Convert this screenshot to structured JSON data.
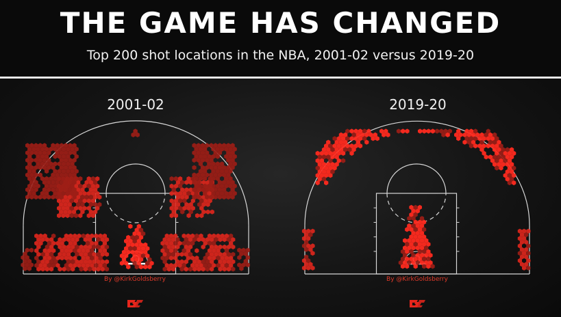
{
  "header": {
    "title": "THE GAME HAS CHANGED",
    "subtitle": "Top 200 shot locations in the NBA, 2001-02 versus 2019-20"
  },
  "colors": {
    "background": "#0c0c0c",
    "court_lines": "#d8d8d8",
    "hex_bright": "#ff2a1f",
    "hex_mid": "#d8261c",
    "hex_dim": "#9a1d16",
    "credit": "#e23a2a"
  },
  "icons": [
    "court-diagram",
    "hexbin-shot-marker",
    "logo-icon"
  ],
  "chart_data": [
    {
      "type": "heatmap",
      "title": "2001-02",
      "credit": "By @KirkGoldsberry",
      "description_units": "court feet; x = lateral offset from basket (-25..25), y = distance from baseline (0..47)",
      "xlim": [
        -25,
        25
      ],
      "ylim": [
        0,
        47
      ],
      "clusters": [
        {
          "zone": "restricted-area",
          "x": [
            -4,
            4
          ],
          "y": [
            1,
            10
          ],
          "intensity": "high"
        },
        {
          "zone": "left-baseline-midrange",
          "x": [
            -22,
            -6
          ],
          "y": [
            1,
            8
          ],
          "intensity": "medium"
        },
        {
          "zone": "right-baseline-midrange",
          "x": [
            6,
            22
          ],
          "y": [
            1,
            8
          ],
          "intensity": "medium"
        },
        {
          "zone": "left-elbow-midrange",
          "x": [
            -17,
            -8
          ],
          "y": [
            12,
            20
          ],
          "intensity": "medium"
        },
        {
          "zone": "right-elbow-midrange",
          "x": [
            8,
            17
          ],
          "y": [
            12,
            20
          ],
          "intensity": "medium"
        },
        {
          "zone": "left-wing-three",
          "x": [
            -24,
            -13
          ],
          "y": [
            16,
            27
          ],
          "intensity": "low"
        },
        {
          "zone": "right-wing-three",
          "x": [
            13,
            22
          ],
          "y": [
            16,
            27
          ],
          "intensity": "low"
        },
        {
          "zone": "top-of-key-three",
          "x": [
            -1,
            1
          ],
          "y": [
            29,
            30
          ],
          "intensity": "low"
        },
        {
          "zone": "left-corner-three",
          "x": [
            -25,
            -23
          ],
          "y": [
            1,
            5
          ],
          "intensity": "low"
        },
        {
          "zone": "right-corner-three",
          "x": [
            23,
            25
          ],
          "y": [
            1,
            5
          ],
          "intensity": "low"
        }
      ]
    },
    {
      "type": "heatmap",
      "title": "2019-20",
      "credit": "By @KirkGoldsberry",
      "description_units": "court feet; x = lateral offset from basket (-25..25), y = distance from baseline (0..47)",
      "xlim": [
        -25,
        25
      ],
      "ylim": [
        0,
        47
      ],
      "clusters": [
        {
          "zone": "restricted-area-and-paint",
          "x": [
            -4,
            4
          ],
          "y": [
            1,
            14
          ],
          "intensity": "high"
        },
        {
          "zone": "above-break-three-arc",
          "x": [
            -22,
            22
          ],
          "y": [
            19,
            30
          ],
          "intensity": "high"
        },
        {
          "zone": "left-corner-three",
          "x": [
            -25,
            -23
          ],
          "y": [
            1,
            9
          ],
          "intensity": "medium"
        },
        {
          "zone": "right-corner-three",
          "x": [
            23,
            25
          ],
          "y": [
            1,
            9
          ],
          "intensity": "medium"
        }
      ]
    }
  ],
  "panels": [
    {
      "label": "2001-02",
      "credit": "By @KirkGoldsberry"
    },
    {
      "label": "2019-20",
      "credit": "By @KirkGoldsberry"
    }
  ]
}
